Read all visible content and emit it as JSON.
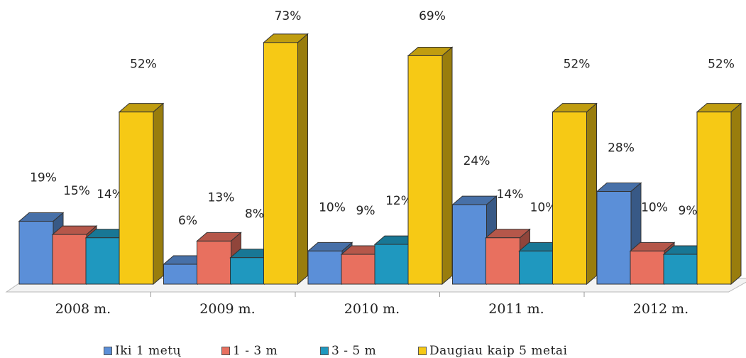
{
  "chart_data": {
    "type": "bar",
    "categories": [
      "2008 m.",
      "2009 m.",
      "2010 m.",
      "2011 m.",
      "2012 m."
    ],
    "series": [
      {
        "name": "Iki 1 metų",
        "values": [
          19,
          6,
          10,
          24,
          28
        ],
        "labels": [
          "19%",
          "6%",
          "10%",
          "24%",
          "28%"
        ],
        "color": "#5b8fd8"
      },
      {
        "name": "1 - 3 m",
        "values": [
          15,
          13,
          9,
          14,
          10
        ],
        "labels": [
          "15%",
          "13%",
          "9%",
          "14%",
          "10%"
        ],
        "color": "#e8705f"
      },
      {
        "name": "3 - 5 m",
        "values": [
          14,
          8,
          12,
          10,
          9
        ],
        "labels": [
          "14%",
          "8%",
          "12%",
          "10%",
          "9%"
        ],
        "color": "#1f98bf"
      },
      {
        "name": "Daugiau kaip 5 metai",
        "values": [
          52,
          73,
          69,
          52,
          52
        ],
        "labels": [
          "52%",
          "73%",
          "69%",
          "52%",
          "52%"
        ],
        "color": "#f6c915"
      }
    ],
    "ylim": [
      0,
      73
    ],
    "grid": false,
    "legend_position": "bottom",
    "three_d": true
  }
}
